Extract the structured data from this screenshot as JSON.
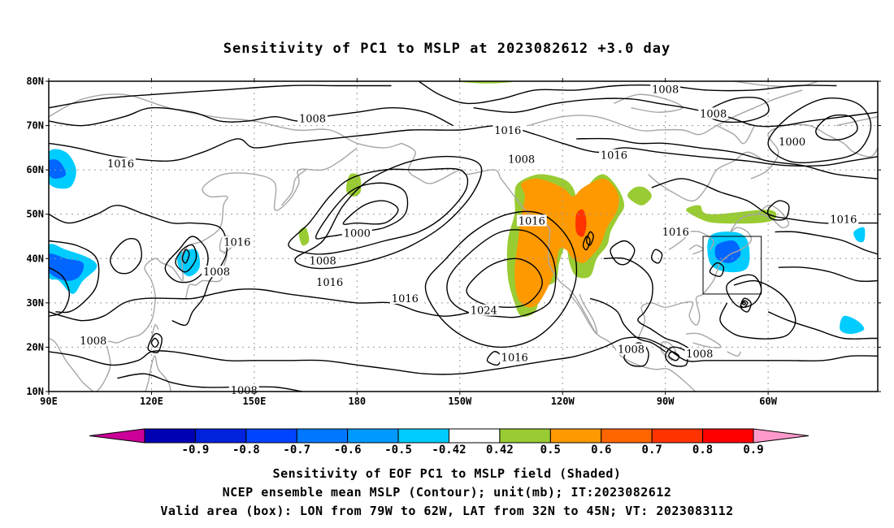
{
  "title": "Sensitivity of PC1 to MSLP at 2023082612 +3.0 day",
  "lat_labels": [
    "80N",
    "70N",
    "60N",
    "50N",
    "40N",
    "30N",
    "20N",
    "10N"
  ],
  "lon_labels": [
    "90E",
    "120E",
    "150E",
    "180",
    "150W",
    "120W",
    "90W",
    "60W"
  ],
  "contour_labels": [
    {
      "text": "1008",
      "lon": 167,
      "lat": 71.5
    },
    {
      "text": "1016",
      "lon": 111,
      "lat": 61.3
    },
    {
      "text": "1016",
      "lon": 224,
      "lat": 68.8
    },
    {
      "text": "1008",
      "lon": 228,
      "lat": 62.3
    },
    {
      "text": "1008",
      "lon": 270,
      "lat": 78.1
    },
    {
      "text": "1008",
      "lon": 284,
      "lat": 72.6
    },
    {
      "text": "1016",
      "lon": 255,
      "lat": 63.2
    },
    {
      "text": "1000",
      "lon": 307,
      "lat": 66.3
    },
    {
      "text": "1016",
      "lon": 322,
      "lat": 48.8
    },
    {
      "text": "1016",
      "lon": 231,
      "lat": 48.4
    },
    {
      "text": "1016",
      "lon": 273,
      "lat": 45.9
    },
    {
      "text": "1000",
      "lon": 180,
      "lat": 45.6
    },
    {
      "text": "1016",
      "lon": 145,
      "lat": 43.6
    },
    {
      "text": "1008",
      "lon": 139,
      "lat": 36.9
    },
    {
      "text": "1008",
      "lon": 170,
      "lat": 39.4
    },
    {
      "text": "1016",
      "lon": 172,
      "lat": 34.6
    },
    {
      "text": "1016",
      "lon": 194,
      "lat": 30.9
    },
    {
      "text": "1024",
      "lon": 217,
      "lat": 28.2
    },
    {
      "text": "1008",
      "lon": 103,
      "lat": 21.4
    },
    {
      "text": "1016",
      "lon": 226,
      "lat": 17.6
    },
    {
      "text": "1008",
      "lon": 260,
      "lat": 19.4
    },
    {
      "text": "1008",
      "lon": 280,
      "lat": 18.4
    },
    {
      "text": "1008",
      "lon": 147,
      "lat": 10.2
    }
  ],
  "shaded_regions": [
    {
      "level": "pos-0.42-0.5",
      "color": "#99cc33",
      "points": [
        [
          209,
          80
        ],
        [
          218,
          79.5
        ],
        [
          226,
          80
        ],
        [
          218,
          81
        ],
        [
          211,
          81
        ]
      ]
    },
    {
      "level": "pos-0.42-0.5",
      "color": "#99cc33",
      "points": [
        [
          179,
          54
        ],
        [
          181,
          55
        ],
        [
          181,
          58
        ],
        [
          180,
          59
        ],
        [
          178,
          59
        ],
        [
          177,
          57
        ],
        [
          177,
          55
        ]
      ]
    },
    {
      "level": "pos-0.42-0.5",
      "color": "#99cc33",
      "points": [
        [
          227,
          57
        ],
        [
          233,
          59
        ],
        [
          240,
          58
        ],
        [
          243,
          56
        ],
        [
          245,
          52
        ],
        [
          248,
          57
        ],
        [
          252,
          59
        ],
        [
          256,
          56
        ],
        [
          258,
          52
        ],
        [
          256,
          49
        ],
        [
          254,
          46
        ],
        [
          253,
          43
        ],
        [
          250,
          40
        ],
        [
          248,
          36
        ],
        [
          244,
          36
        ],
        [
          242,
          39
        ],
        [
          241,
          43
        ],
        [
          239,
          39
        ],
        [
          238,
          35
        ],
        [
          234,
          33
        ],
        [
          232,
          28
        ],
        [
          228,
          27
        ],
        [
          226,
          30
        ],
        [
          224,
          36
        ],
        [
          224,
          44
        ],
        [
          226,
          50
        ],
        [
          226,
          54
        ]
      ]
    },
    {
      "level": "pos-0.42-0.5",
      "color": "#99cc33",
      "points": [
        [
          259,
          54
        ],
        [
          263,
          52
        ],
        [
          266,
          54
        ],
        [
          264,
          56
        ],
        [
          261,
          56
        ]
      ]
    },
    {
      "level": "pos-0.42-0.5",
      "color": "#99cc33",
      "points": [
        [
          276,
          51
        ],
        [
          280,
          52
        ],
        [
          283,
          50
        ],
        [
          300,
          51
        ],
        [
          302,
          49
        ],
        [
          297,
          48
        ],
        [
          285,
          48
        ],
        [
          280,
          49
        ]
      ]
    },
    {
      "level": "pos-0.42-0.5",
      "color": "#99cc33",
      "points": [
        [
          163,
          46
        ],
        [
          165,
          47
        ],
        [
          166,
          44
        ],
        [
          164,
          43
        ]
      ]
    },
    {
      "level": "pos-0.5-0.7",
      "color": "#ff9900",
      "points": [
        [
          228,
          57
        ],
        [
          233,
          58
        ],
        [
          240,
          56
        ],
        [
          243,
          54
        ],
        [
          246,
          56
        ],
        [
          252,
          58
        ],
        [
          256,
          55
        ],
        [
          256,
          51
        ],
        [
          253,
          47
        ],
        [
          251,
          43
        ],
        [
          249,
          41
        ],
        [
          246,
          39
        ],
        [
          243,
          40
        ],
        [
          241,
          42
        ],
        [
          239,
          42
        ],
        [
          238,
          38
        ],
        [
          236,
          34
        ],
        [
          233,
          30
        ],
        [
          230,
          29
        ],
        [
          227,
          31
        ],
        [
          226,
          37
        ],
        [
          227,
          44
        ],
        [
          228,
          50
        ],
        [
          229,
          54
        ]
      ]
    },
    {
      "level": "pos-0.7-0.8",
      "color": "#ff3300",
      "points": [
        [
          244,
          50
        ],
        [
          246,
          51
        ],
        [
          247,
          48
        ],
        [
          246,
          45
        ],
        [
          244,
          46
        ]
      ]
    },
    {
      "level": "neg-0.42-0.5",
      "color": "#00ccff",
      "points": [
        [
          90,
          64
        ],
        [
          95,
          64
        ],
        [
          98,
          60
        ],
        [
          96,
          56
        ],
        [
          90,
          57
        ]
      ]
    },
    {
      "level": "neg-0.5-0.7",
      "color": "#0066ff",
      "points": [
        [
          90,
          62
        ],
        [
          93,
          62
        ],
        [
          95,
          59
        ],
        [
          92,
          58
        ],
        [
          90,
          59
        ]
      ]
    },
    {
      "level": "neg-0.42-0.5",
      "color": "#00ccff",
      "points": [
        [
          90,
          43
        ],
        [
          95,
          42
        ],
        [
          102,
          40
        ],
        [
          104,
          38
        ],
        [
          100,
          35
        ],
        [
          97,
          32
        ],
        [
          93,
          35
        ],
        [
          90,
          36
        ]
      ]
    },
    {
      "level": "neg-0.5-0.7",
      "color": "#0066ff",
      "points": [
        [
          90,
          41
        ],
        [
          95,
          40
        ],
        [
          100,
          39
        ],
        [
          99,
          36
        ],
        [
          95,
          35
        ],
        [
          90,
          37
        ]
      ]
    },
    {
      "level": "neg-0.42-0.5",
      "color": "#00ccff",
      "points": [
        [
          128,
          41
        ],
        [
          133,
          42
        ],
        [
          134,
          38
        ],
        [
          131,
          36
        ],
        [
          128,
          38
        ]
      ]
    },
    {
      "level": "neg-0.42-0.5",
      "color": "#00ccff",
      "points": [
        [
          283,
          45
        ],
        [
          290,
          46
        ],
        [
          294,
          44
        ],
        [
          294,
          38
        ],
        [
          288,
          37
        ],
        [
          283,
          39
        ]
      ]
    },
    {
      "level": "neg-0.5-0.7",
      "color": "#0066ff",
      "points": [
        [
          285,
          43
        ],
        [
          290,
          44
        ],
        [
          292,
          41
        ],
        [
          289,
          39
        ],
        [
          285,
          40
        ]
      ]
    },
    {
      "level": "neg-0.42-0.5",
      "color": "#00ccff",
      "points": [
        [
          322,
          27
        ],
        [
          326,
          26
        ],
        [
          328,
          24
        ],
        [
          324,
          23
        ],
        [
          321,
          24
        ]
      ]
    },
    {
      "level": "neg-0.42-0.5",
      "color": "#00ccff",
      "points": [
        [
          325,
          46
        ],
        [
          328,
          47
        ],
        [
          328,
          44
        ],
        [
          326,
          44
        ]
      ]
    }
  ],
  "valid_box": {
    "lon_min": 281,
    "lon_max": 298,
    "lat_min": 32,
    "lat_max": 45
  },
  "colorbar": {
    "colors": [
      "#cc0099",
      "#0000b3",
      "#0022dd",
      "#0044ff",
      "#0077ff",
      "#0099ff",
      "#00ccff",
      "#ffffff",
      "#99cc33",
      "#ff9900",
      "#ff6600",
      "#ff3300",
      "#ff0000",
      "#ff99cc"
    ],
    "labels": [
      "-0.9",
      "-0.8",
      "-0.7",
      "-0.6",
      "-0.5",
      "-0.42",
      "0.42",
      "0.5",
      "0.6",
      "0.7",
      "0.8",
      "0.9"
    ]
  },
  "captions": [
    "Sensitivity of EOF PC1 to MSLP field (Shaded)",
    "NCEP ensemble mean MSLP (Contour); unit(mb); IT:2023082612",
    "Valid area (box): LON from 79W to 62W, LAT from 32N to 45N; VT: 2023083112"
  ]
}
